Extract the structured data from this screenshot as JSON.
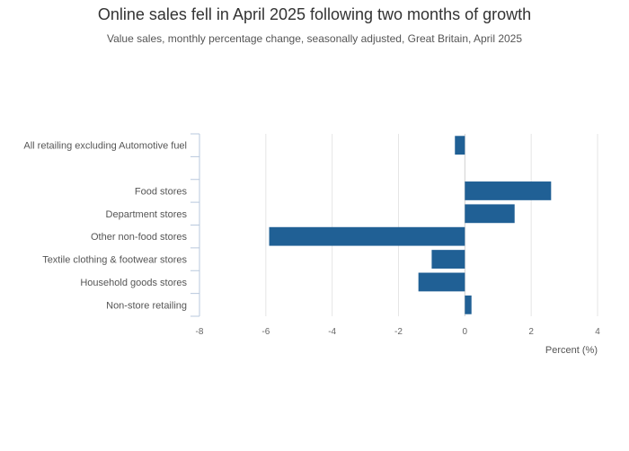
{
  "chart_data": {
    "type": "bar",
    "orientation": "horizontal",
    "title": "Online sales fell in April 2025 following two months of growth",
    "subtitle": "Value sales, monthly percentage change, seasonally adjusted, Great Britain, April 2025",
    "xlabel": "Percent (%)",
    "ylabel": "",
    "xlim": [
      -8,
      4
    ],
    "xticks": [
      -8,
      -6,
      -4,
      -2,
      0,
      2,
      4
    ],
    "grid": true,
    "legend": "none",
    "bar_color": "#206095",
    "categories": [
      "All retailing excluding Automotive fuel",
      "",
      "Food stores",
      "Department stores",
      "Other non-food stores",
      "Textile clothing & footwear stores",
      "Household goods stores",
      "Non-store retailing"
    ],
    "values": [
      -0.3,
      null,
      2.6,
      1.5,
      -5.9,
      -1.0,
      -1.4,
      0.2
    ]
  }
}
